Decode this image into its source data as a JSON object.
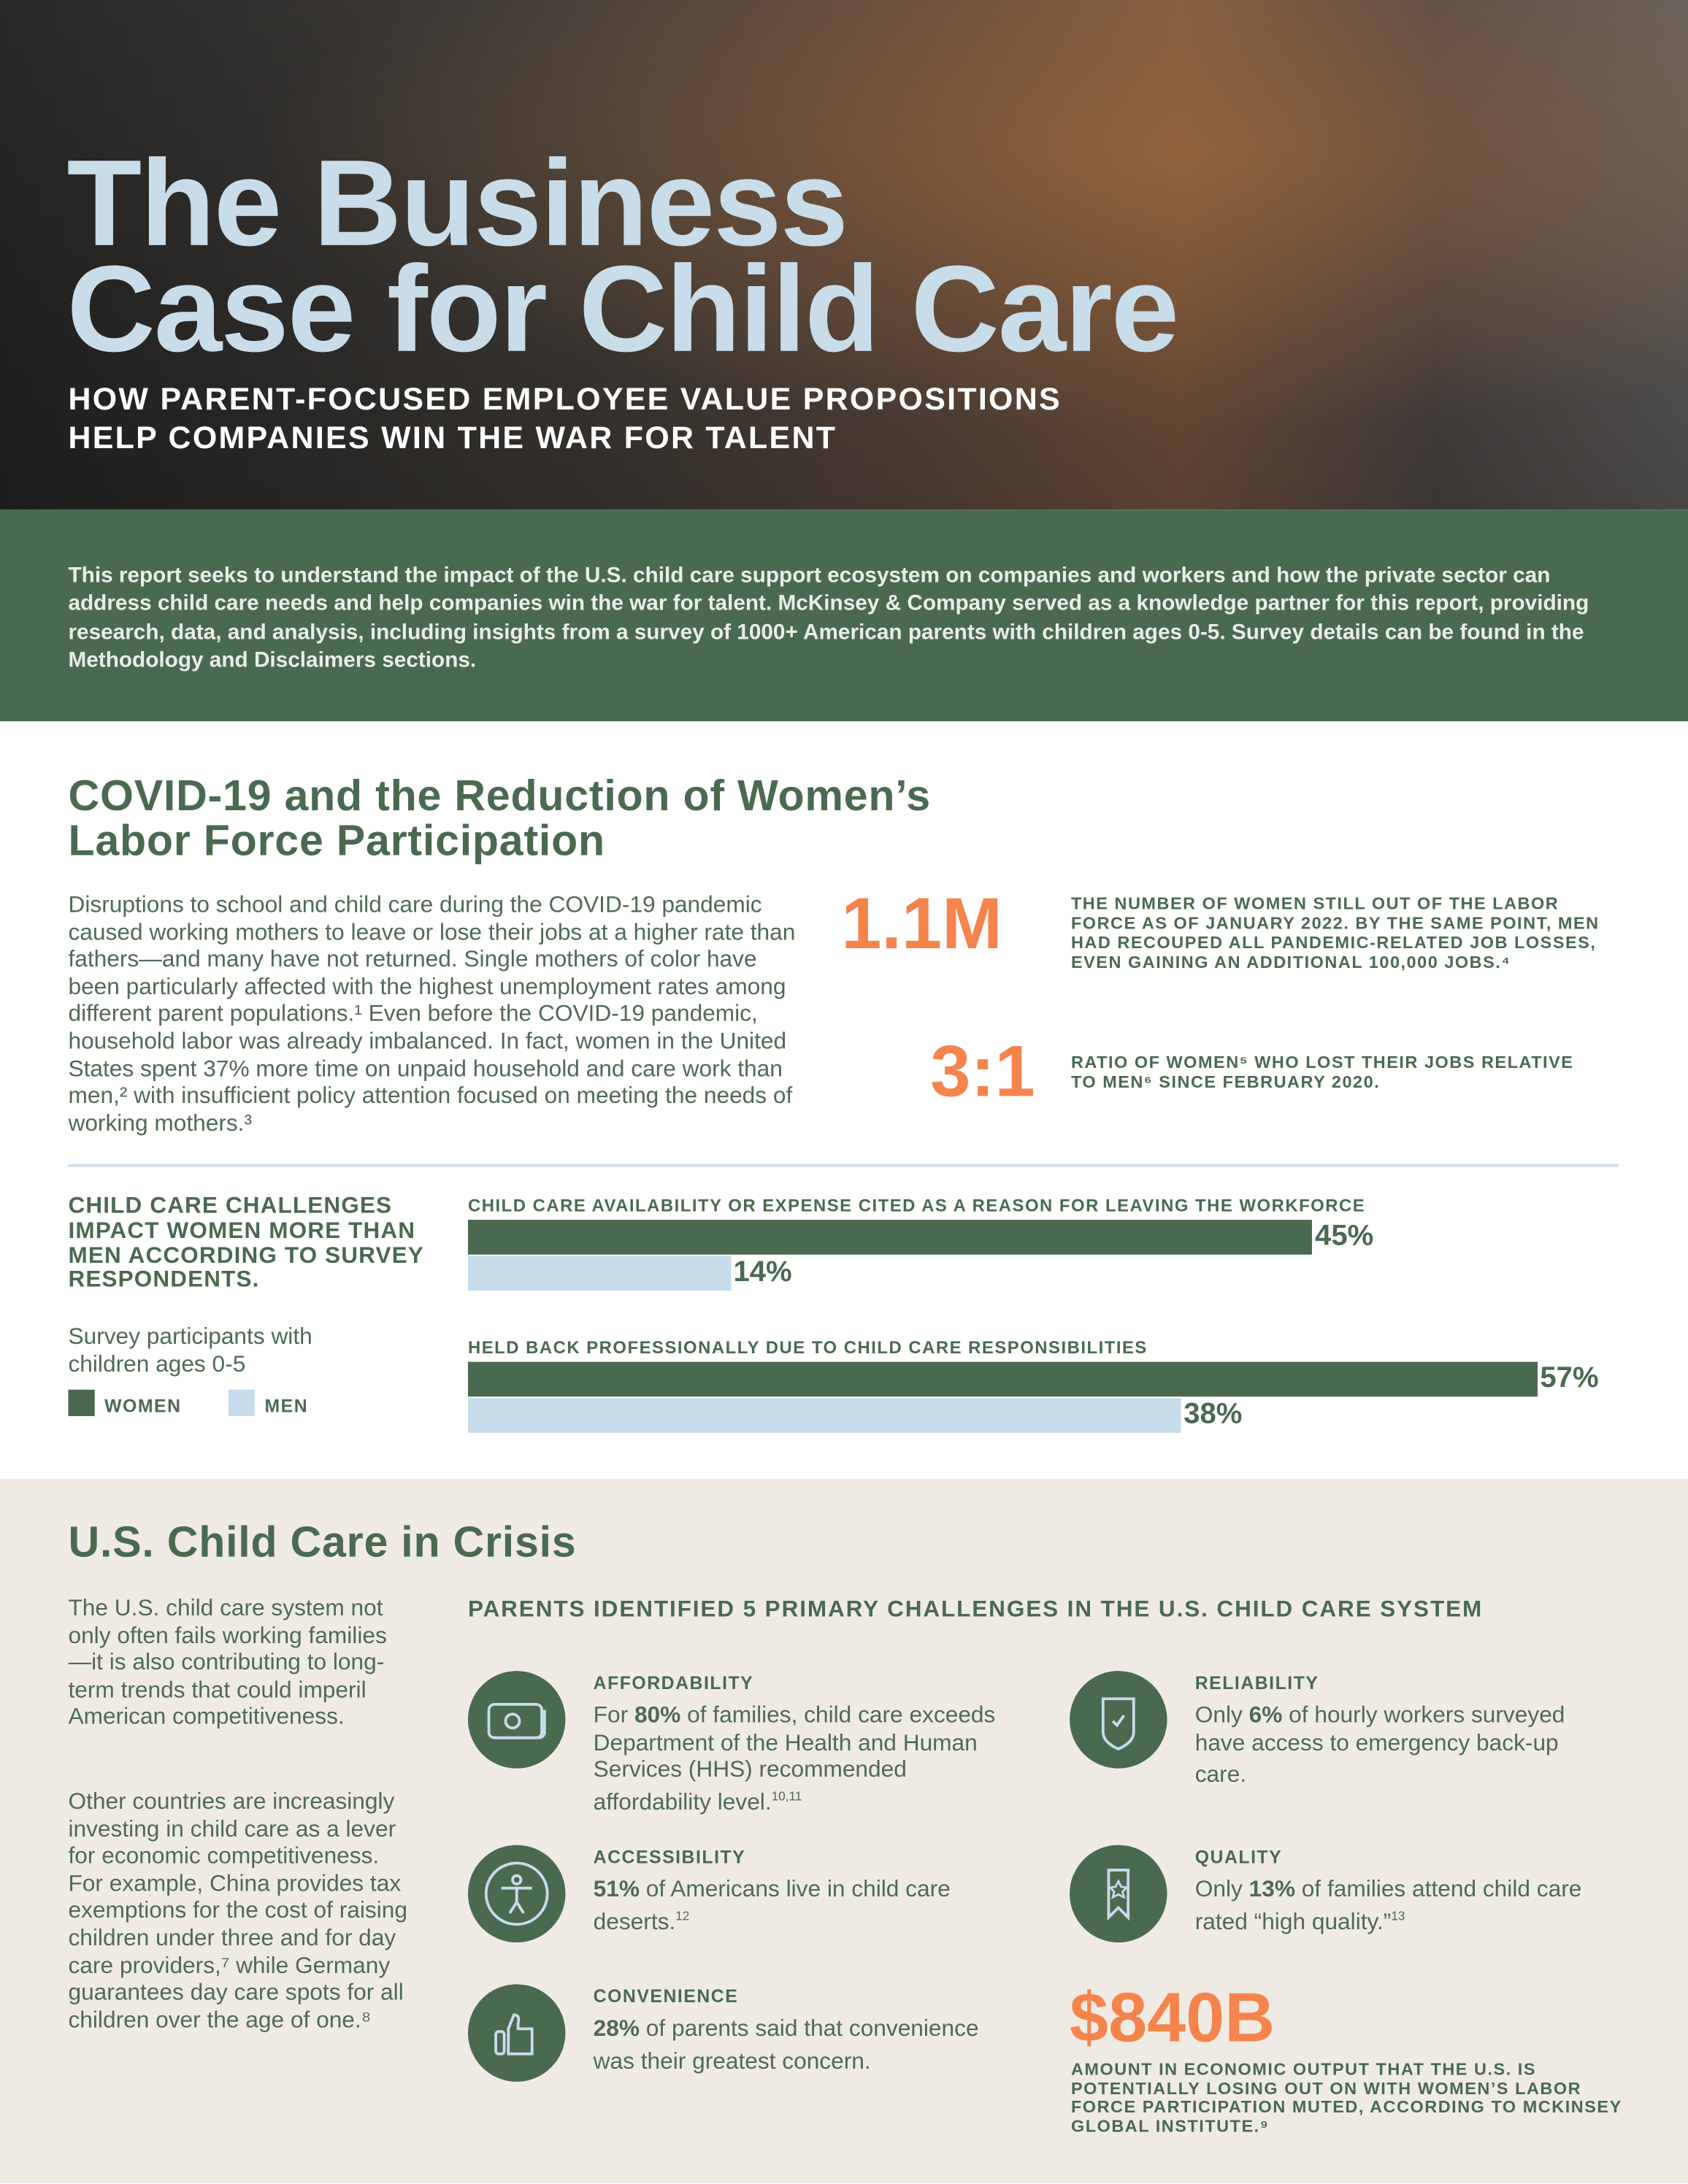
{
  "hero": {
    "title_line1": "The Business",
    "title_line2": "Case for Child Care",
    "subtitle_line1": "HOW PARENT-FOCUSED EMPLOYEE VALUE PROPOSITIONS",
    "subtitle_line2": "HELP COMPANIES WIN THE WAR FOR TALENT"
  },
  "intro": {
    "text": "This report seeks to understand the impact of the U.S. child care support ecosystem on companies and workers and how the private sector can address child care needs and help companies win the war for talent. McKinsey & Company served as a knowledge partner for this report, providing research, data, and analysis, including insights from a survey of 1000+ American parents with children ages 0-5. Survey details can be found in the Methodology and Disclaimers sections."
  },
  "covid": {
    "heading_line1": "COVID-19 and the Reduction of Women’s",
    "heading_line2": "Labor Force Participation",
    "paragraph": "Disruptions to school and child care during the COVID-19 pandemic caused working mothers to leave or lose their jobs at a higher rate than fathers—and many have not returned.  Single mothers of color have been particularly affected with the highest unemployment rates among different parent populations.¹ Even before the COVID-19 pandemic, household labor was already imbalanced. In fact, women in the United States spent 37% more time on unpaid household and care work than men,² with insufficient policy attention focused on meeting the needs of working mothers.³",
    "stat1": {
      "value": "1.1M",
      "text": "THE NUMBER OF WOMEN STILL OUT OF THE LABOR FORCE AS OF JANUARY 2022.  BY THE SAME POINT, MEN HAD RECOUPED ALL PANDEMIC-RELATED JOB LOSSES, EVEN GAINING AN ADDITIONAL 100,000 JOBS.⁴"
    },
    "stat2": {
      "value": "3:1",
      "text": "RATIO OF WOMEN⁵ WHO LOST THEIR JOBS RELATIVE TO MEN⁶ SINCE FEBRUARY 2020."
    }
  },
  "chart_data": {
    "type": "bar",
    "orientation": "horizontal",
    "title": "CHILD CARE CHALLENGES IMPACT WOMEN MORE THAN MEN ACCORDING TO SURVEY RESPONDENTS.",
    "subtitle": "Survey participants with children ages 0-5",
    "categories": [
      "CHILD CARE AVAILABILITY OR EXPENSE CITED AS A REASON FOR LEAVING THE WORKFORCE",
      "HELD BACK PROFESSIONALLY DUE TO CHILD CARE RESPONSIBILITIES"
    ],
    "series": [
      {
        "name": "WOMEN",
        "values": [
          45,
          57
        ],
        "labels": [
          "45%",
          "57%"
        ],
        "color": "#4a6a50"
      },
      {
        "name": "MEN",
        "values": [
          14,
          38
        ],
        "labels": [
          "14%",
          "38%"
        ],
        "color": "#c6dceb"
      }
    ],
    "legend": "bottom-left"
  },
  "crisis": {
    "heading": "U.S. Child Care in Crisis",
    "para1": "The U.S. child care system not only often fails working families—it is also contributing to long-term trends that could imperil American competitiveness.",
    "para2": "Other countries are increasingly investing in child care as a lever for economic competitiveness. For example, China provides tax exemptions for the cost of raising children under three and for day care providers,⁷ while Germany guarantees day care spots for all children over the age of one.⁸",
    "challenges_heading": "PARENTS IDENTIFIED 5 PRIMARY CHALLENGES IN THE U.S. CHILD CARE SYSTEM",
    "items": [
      {
        "label": "AFFORDABILITY",
        "strong": "80%",
        "pre": "For ",
        "post": " of families, child care exceeds Department of the Health and Human Services (HHS) recommended affordability level.",
        "note": "10,11",
        "icon": "money-icon"
      },
      {
        "label": "RELIABILITY",
        "strong": "6%",
        "pre": "Only ",
        "post": " of hourly workers surveyed have access to emergency back-up care.",
        "note": "",
        "icon": "shield-check-icon"
      },
      {
        "label": "ACCESSIBILITY",
        "strong": "51%",
        "pre": "",
        "post": " of Americans live in child care deserts.",
        "note": "12",
        "icon": "accessibility-icon"
      },
      {
        "label": "QUALITY",
        "strong": "13%",
        "pre": "Only ",
        "post": " of families attend child care rated “high quality.”",
        "note": "13",
        "icon": "ribbon-star-icon"
      },
      {
        "label": "CONVENIENCE",
        "strong": "28%",
        "pre": "",
        "post": " of parents said that convenience was their greatest concern.",
        "note": "",
        "icon": "thumbs-up-icon"
      }
    ],
    "stat": {
      "value": "$840B",
      "text": "AMOUNT IN ECONOMIC OUTPUT THAT THE U.S. IS POTENTIALLY LOSING OUT ON WITH WOMEN’S LABOR FORCE PARTICIPATION MUTED, ACCORDING TO MCKINSEY GLOBAL INSTITUTE.⁹"
    }
  },
  "colors": {
    "green": "#4a6a50",
    "orange": "#f5844c",
    "light_blue": "#c6dceb",
    "beige": "#efebe4",
    "title_blue": "#c8dcea"
  }
}
